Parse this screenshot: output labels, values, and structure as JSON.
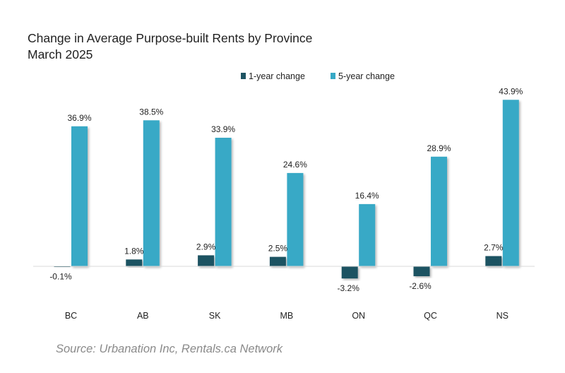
{
  "title_line1": "Change in Average Purpose-built Rents by Province",
  "title_line2": "March 2025",
  "source": "Source: Urbanation Inc, Rentals.ca Network",
  "colors": {
    "one_year": "#1e5362",
    "five_year": "#37a9c6"
  },
  "chart_data": {
    "type": "bar",
    "categories": [
      "BC",
      "AB",
      "SK",
      "MB",
      "ON",
      "QC",
      "NS"
    ],
    "series": [
      {
        "name": "1-year change",
        "values": [
          -0.1,
          1.8,
          2.9,
          2.5,
          -3.2,
          -2.6,
          2.7
        ],
        "labels": [
          "-0.1%",
          "1.8%",
          "2.9%",
          "2.5%",
          "-3.2%",
          "-2.6%",
          "2.7%"
        ]
      },
      {
        "name": "5-year change",
        "values": [
          36.9,
          38.5,
          33.9,
          24.6,
          16.4,
          28.9,
          43.9
        ],
        "labels": [
          "36.9%",
          "38.5%",
          "33.9%",
          "24.6%",
          "16.4%",
          "28.9%",
          "43.9%"
        ]
      }
    ],
    "ylim": [
      -5,
      45
    ],
    "legend": "top-center",
    "grid": false
  }
}
